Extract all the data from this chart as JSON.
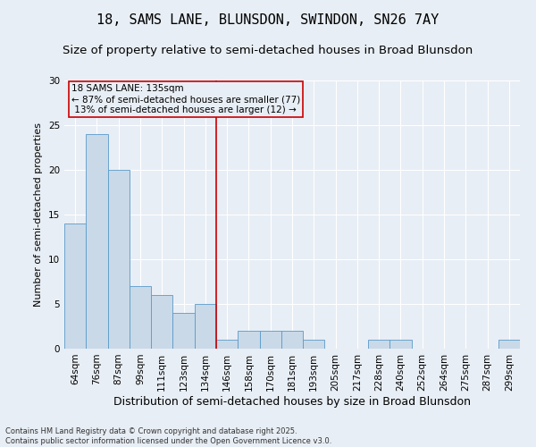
{
  "title": "18, SAMS LANE, BLUNSDON, SWINDON, SN26 7AY",
  "subtitle": "Size of property relative to semi-detached houses in Broad Blunsdon",
  "xlabel": "Distribution of semi-detached houses by size in Broad Blunsdon",
  "ylabel": "Number of semi-detached properties",
  "bin_labels": [
    "64sqm",
    "76sqm",
    "87sqm",
    "99sqm",
    "111sqm",
    "123sqm",
    "134sqm",
    "146sqm",
    "158sqm",
    "170sqm",
    "181sqm",
    "193sqm",
    "205sqm",
    "217sqm",
    "228sqm",
    "240sqm",
    "252sqm",
    "264sqm",
    "275sqm",
    "287sqm",
    "299sqm"
  ],
  "bin_values": [
    14,
    24,
    20,
    7,
    6,
    4,
    5,
    1,
    2,
    2,
    2,
    1,
    0,
    0,
    1,
    1,
    0,
    0,
    0,
    0,
    1
  ],
  "bar_color": "#c9d9e8",
  "bar_edgecolor": "#5a9ac9",
  "property_label": "18 SAMS LANE: 135sqm",
  "pct_smaller": 87,
  "n_smaller": 77,
  "pct_larger": 13,
  "n_larger": 12,
  "vline_bin_edge": 6.5,
  "ylim": [
    0,
    30
  ],
  "yticks": [
    0,
    5,
    10,
    15,
    20,
    25,
    30
  ],
  "annotation_box_color": "#cc0000",
  "vline_color": "#cc0000",
  "footer_text": "Contains HM Land Registry data © Crown copyright and database right 2025.\nContains public sector information licensed under the Open Government Licence v3.0.",
  "background_color": "#e8eef5",
  "title_fontsize": 11,
  "subtitle_fontsize": 9.5,
  "xlabel_fontsize": 9,
  "ylabel_fontsize": 8,
  "tick_fontsize": 7.5,
  "annotation_fontsize": 7.5,
  "footer_fontsize": 6
}
